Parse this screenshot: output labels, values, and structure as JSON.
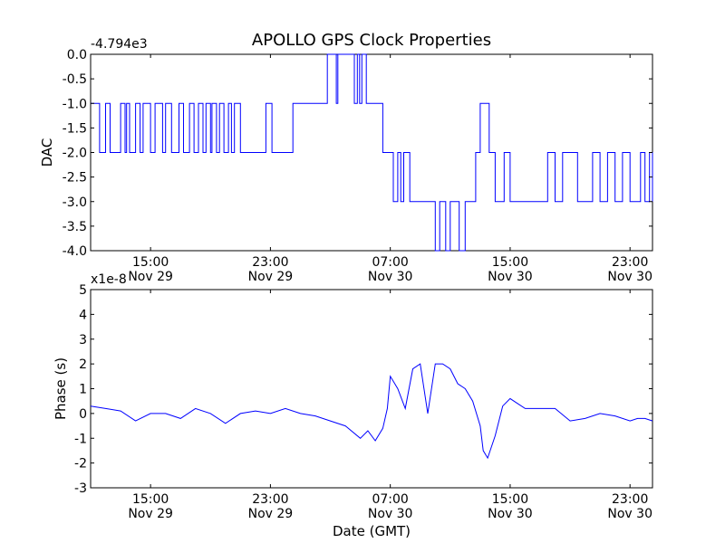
{
  "figure": {
    "title": "APOLLO GPS Clock Properties",
    "xlabel": "Date (GMT)"
  },
  "chart_data": [
    {
      "type": "line",
      "title": "APOLLO GPS Clock Properties",
      "ylabel": "DAC",
      "offset_label": "-4.794e3",
      "ylim": [
        -4.0,
        0.0
      ],
      "yticks": [
        "-4.0",
        "-3.5",
        "-3.0",
        "-2.5",
        "-2.0",
        "-1.5",
        "-1.0",
        "-0.5",
        "0.0"
      ],
      "ytick_values": [
        -4.0,
        -3.5,
        -3.0,
        -2.5,
        -2.0,
        -1.5,
        -1.0,
        -0.5,
        0.0
      ],
      "xlim_hours_from_nov29_0000": [
        11.0,
        48.5
      ],
      "xticks": [
        {
          "time": "15:00",
          "date": "Nov 29",
          "hour": 15
        },
        {
          "time": "23:00",
          "date": "Nov 29",
          "hour": 23
        },
        {
          "time": "07:00",
          "date": "Nov 30",
          "hour": 31
        },
        {
          "time": "15:00",
          "date": "Nov 30",
          "hour": 39
        },
        {
          "time": "23:00",
          "date": "Nov 30",
          "hour": 47
        }
      ],
      "color": "#0000ff",
      "series": [
        {
          "step": true,
          "x": [
            11.0,
            11.6,
            12.0,
            12.3,
            13.0,
            13.3,
            13.4,
            13.6,
            14.0,
            14.3,
            14.5,
            15.0,
            15.3,
            15.8,
            16.0,
            16.4,
            16.9,
            17.2,
            17.6,
            17.9,
            18.2,
            18.5,
            18.7,
            19.0,
            19.1,
            19.4,
            19.6,
            19.9,
            20.2,
            20.4,
            20.6,
            21.0,
            22.7,
            23.1,
            24.5,
            24.9,
            26.8,
            27.4,
            27.5,
            28.6,
            28.8,
            28.95,
            29.1,
            29.4,
            30.5,
            31.2,
            31.5,
            31.7,
            31.9,
            32.3,
            33.0,
            34.0,
            34.3,
            34.7,
            35.0,
            35.6,
            36.0,
            36.7,
            37.0,
            37.6,
            38.0,
            38.6,
            39.0,
            41.0,
            41.5,
            42.0,
            42.5,
            43.5,
            44.5,
            45.0,
            45.5,
            46.0,
            46.5,
            47.0,
            47.7,
            48.0,
            48.3,
            48.5
          ],
          "y": [
            -1.0,
            -2.0,
            -1.0,
            -2.0,
            -1.0,
            -2.0,
            -1.0,
            -2.0,
            -1.0,
            -2.0,
            -1.0,
            -2.0,
            -1.0,
            -2.0,
            -1.0,
            -2.0,
            -1.0,
            -2.0,
            -1.0,
            -2.0,
            -1.0,
            -2.0,
            -1.0,
            -2.0,
            -1.0,
            -2.0,
            -1.0,
            -2.0,
            -1.0,
            -2.0,
            -1.0,
            -2.0,
            -1.0,
            -2.0,
            -1.0,
            -1.0,
            0.0,
            -1.0,
            0.0,
            -1.0,
            0.0,
            -1.0,
            0.0,
            -1.0,
            -2.0,
            -3.0,
            -2.0,
            -3.0,
            -2.0,
            -3.0,
            -3.0,
            -4.0,
            -3.0,
            -4.0,
            -3.0,
            -4.0,
            -3.0,
            -2.0,
            -1.0,
            -2.0,
            -3.0,
            -2.0,
            -3.0,
            -3.0,
            -2.0,
            -3.0,
            -2.0,
            -3.0,
            -2.0,
            -3.0,
            -2.0,
            -3.0,
            -2.0,
            -3.0,
            -2.0,
            -3.0,
            -2.0,
            -3.0
          ]
        }
      ]
    },
    {
      "type": "line",
      "ylabel": "Phase (s)",
      "offset_label": "x1e-8",
      "ylim": [
        -3,
        5
      ],
      "yticks": [
        "-3",
        "-2",
        "-1",
        "0",
        "1",
        "2",
        "3",
        "4",
        "5"
      ],
      "ytick_values": [
        -3,
        -2,
        -1,
        0,
        1,
        2,
        3,
        4,
        5
      ],
      "xlim_hours_from_nov29_0000": [
        11.0,
        48.5
      ],
      "xticks": [
        {
          "time": "15:00",
          "date": "Nov 29",
          "hour": 15
        },
        {
          "time": "23:00",
          "date": "Nov 29",
          "hour": 23
        },
        {
          "time": "07:00",
          "date": "Nov 30",
          "hour": 31
        },
        {
          "time": "15:00",
          "date": "Nov 30",
          "hour": 39
        },
        {
          "time": "23:00",
          "date": "Nov 30",
          "hour": 47
        }
      ],
      "color": "#0000ff",
      "series": [
        {
          "x": [
            11.0,
            12.0,
            13.0,
            14.0,
            15.0,
            16.0,
            17.0,
            18.0,
            19.0,
            20.0,
            21.0,
            22.0,
            23.0,
            24.0,
            25.0,
            26.0,
            27.0,
            28.0,
            29.0,
            29.5,
            30.0,
            30.5,
            30.8,
            31.0,
            31.5,
            32.0,
            32.5,
            33.0,
            33.5,
            34.0,
            34.5,
            35.0,
            35.5,
            36.0,
            36.5,
            37.0,
            37.2,
            37.5,
            38.0,
            38.5,
            39.0,
            39.5,
            40.0,
            41.0,
            42.0,
            43.0,
            44.0,
            45.0,
            46.0,
            47.0,
            47.5,
            48.0,
            48.5
          ],
          "y": [
            0.3,
            0.2,
            0.1,
            -0.3,
            0.0,
            0.0,
            -0.2,
            0.2,
            0.0,
            -0.4,
            0.0,
            0.1,
            0.0,
            0.2,
            0.0,
            -0.1,
            -0.3,
            -0.5,
            -1.0,
            -0.7,
            -1.1,
            -0.6,
            0.2,
            1.5,
            1.0,
            0.2,
            1.8,
            2.0,
            0.0,
            2.0,
            2.0,
            1.8,
            1.2,
            1.0,
            0.5,
            -0.5,
            -1.5,
            -1.8,
            -0.9,
            0.3,
            0.6,
            0.4,
            0.2,
            0.2,
            0.2,
            -0.3,
            -0.2,
            0.0,
            -0.1,
            -0.3,
            -0.2,
            -0.2,
            -0.3
          ]
        }
      ]
    }
  ]
}
